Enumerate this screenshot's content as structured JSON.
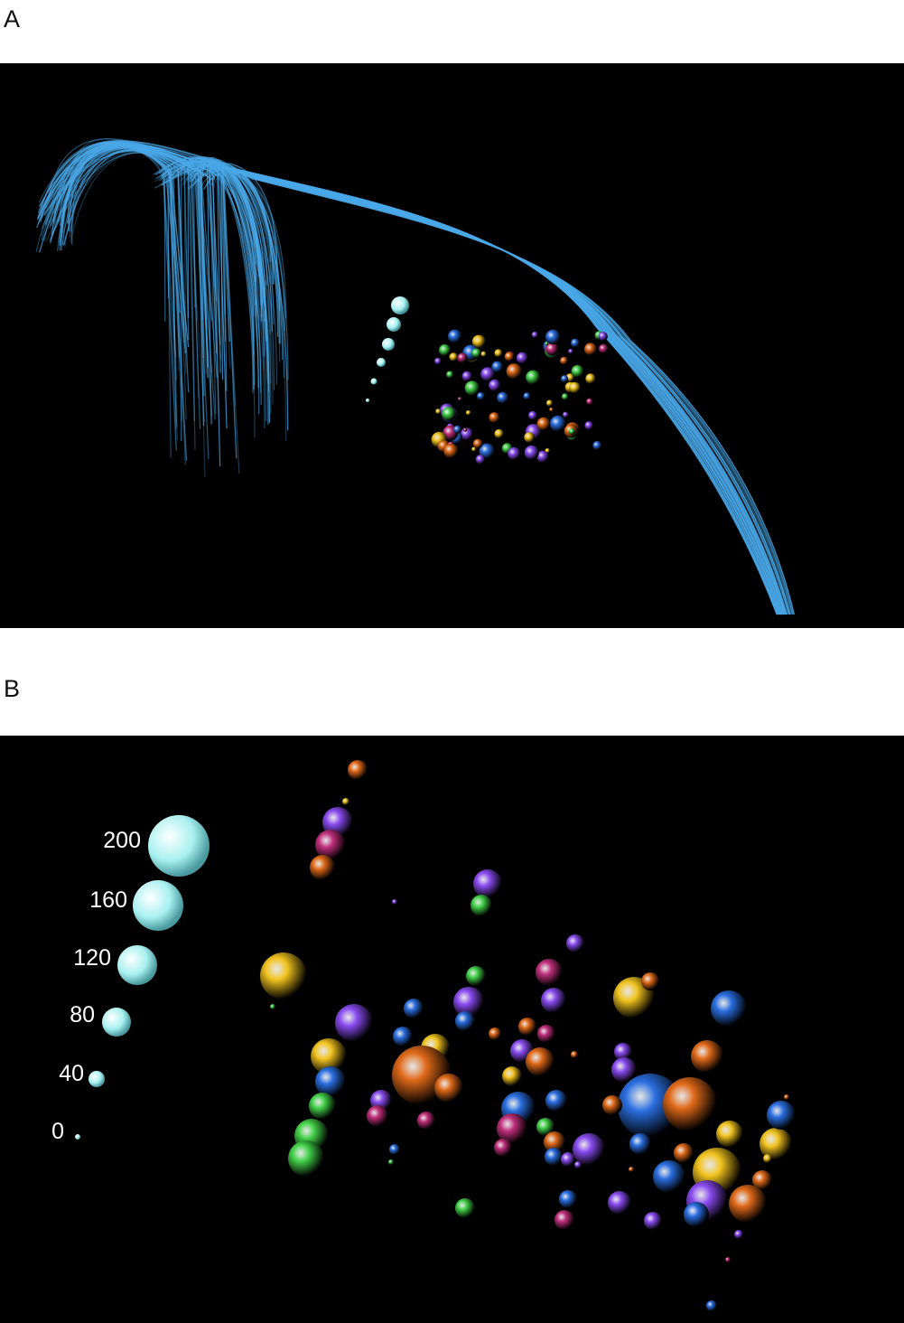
{
  "panels": {
    "a": {
      "letter": "A"
    },
    "b": {
      "letter": "B"
    }
  },
  "scale_labels": [
    "200",
    "160",
    "120",
    "80",
    "40",
    "0"
  ],
  "colors": {
    "background": "#000000",
    "fibers": "#4aa8e8",
    "scale_sphere": "#a8f0f0",
    "sphere_palette": [
      "#2b6fe0",
      "#f2c420",
      "#c0307c",
      "#44d24a",
      "#e06a1a",
      "#8a4cf0"
    ]
  },
  "image_description_free": true
}
